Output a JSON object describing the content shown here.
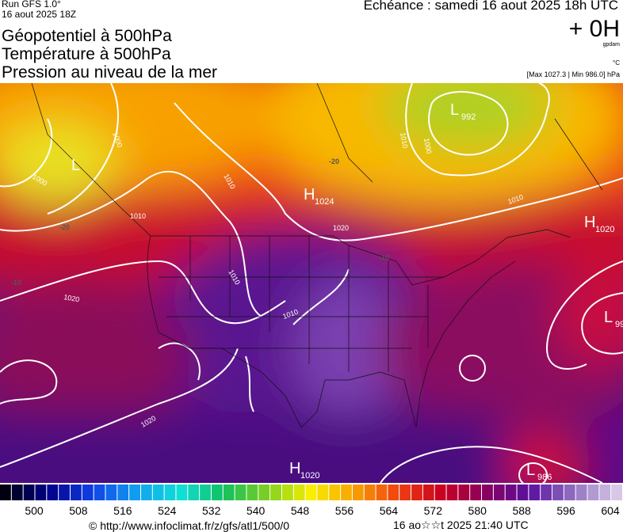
{
  "header": {
    "run": "Run GFS 1.0°",
    "date": "16 aout 2025 18Z",
    "echeance": "Echéance : samedi 16 aout 2025 18h UTC",
    "offset": "+ 0H",
    "unit1": "gpdam",
    "unit2": "°C",
    "range": "[Max 1027.3 | Min 986.0] hPa"
  },
  "titles": [
    "Géopotentiel à 500hPa",
    "Température à 500hPa",
    "Pression au niveau de la mer"
  ],
  "map": {
    "centers": [
      {
        "type": "L",
        "value": null
      },
      {
        "type": "L",
        "value": "992"
      },
      {
        "type": "H",
        "value": "1024"
      },
      {
        "type": "H",
        "value": "1020"
      },
      {
        "type": "L",
        "value": "99"
      },
      {
        "type": "H",
        "value": "1020"
      },
      {
        "type": "L",
        "value": "986"
      }
    ],
    "isobar_labels": [
      "1000",
      "1000",
      "1010",
      "1010",
      "1020",
      "1010",
      "1010",
      "1000",
      "1020",
      "1010",
      "1010",
      "1020"
    ],
    "temperature_labels": [
      "-20",
      "-20",
      "-10",
      "-10"
    ]
  },
  "colorbar": {
    "labels": [
      500,
      508,
      516,
      524,
      532,
      540,
      548,
      556,
      564,
      572,
      580,
      588,
      596,
      604
    ]
  },
  "footer": {
    "url": "© http://www.infoclimat.fr/z/gfs/atl1/500/0",
    "time": "16 ao☆☆t 2025 21:40 UTC"
  }
}
